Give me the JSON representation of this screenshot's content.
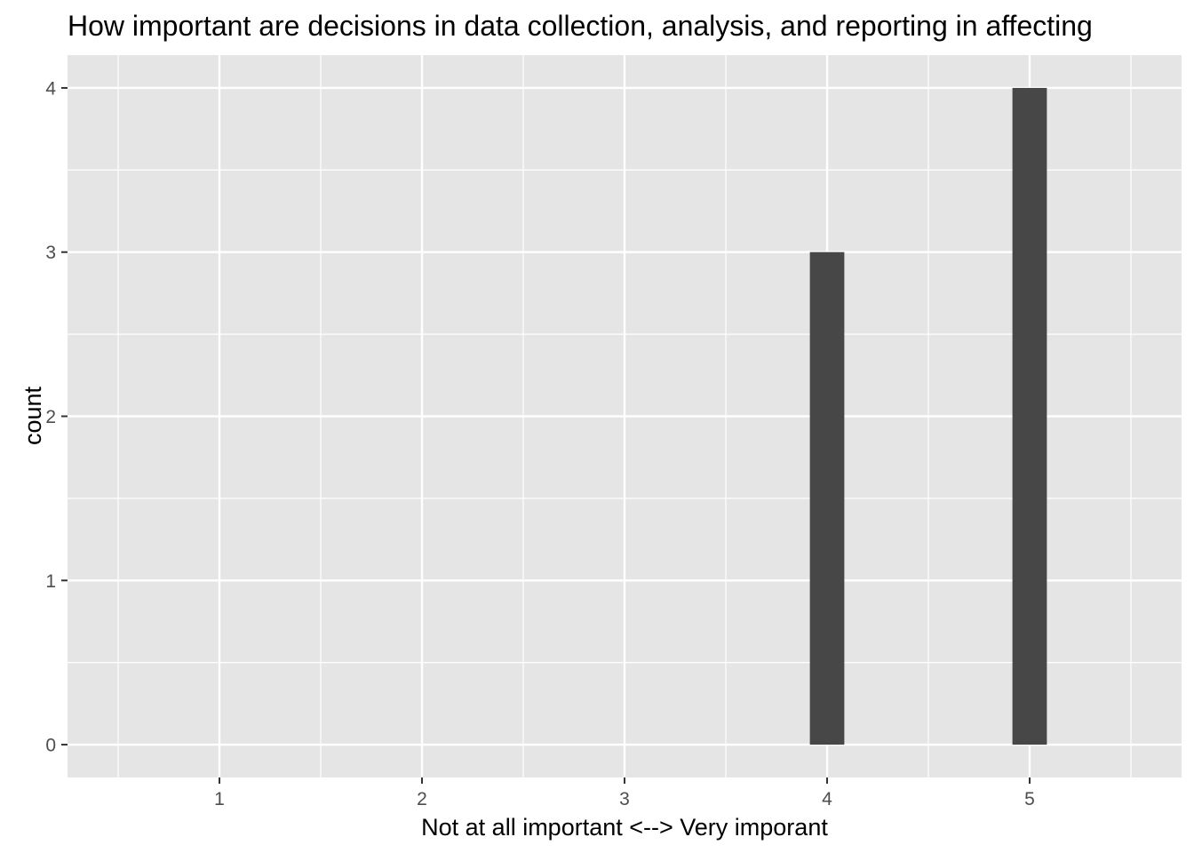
{
  "chart_data": {
    "type": "bar",
    "title": "How important are decisions in data collection, analysis, and reporting in affecting",
    "xlabel": "Not at all important <--> Very imporant",
    "ylabel": "count",
    "x_ticks": [
      "1",
      "2",
      "3",
      "4",
      "5"
    ],
    "y_ticks": [
      "0",
      "1",
      "2",
      "3",
      "4"
    ],
    "categories": [
      "1",
      "2",
      "3",
      "4",
      "5"
    ],
    "x": [
      1,
      2,
      3,
      4,
      5
    ],
    "values": [
      0,
      0,
      0,
      3,
      4
    ],
    "xlim": [
      0.25,
      5.75
    ],
    "ylim": [
      -0.2,
      4.2
    ],
    "grid": true,
    "legend": "none",
    "colors": {
      "panel_background": "#e5e5e5",
      "grid_line": "#ffffff",
      "bar_fill": "#474747",
      "tick_mark": "#333333"
    }
  }
}
